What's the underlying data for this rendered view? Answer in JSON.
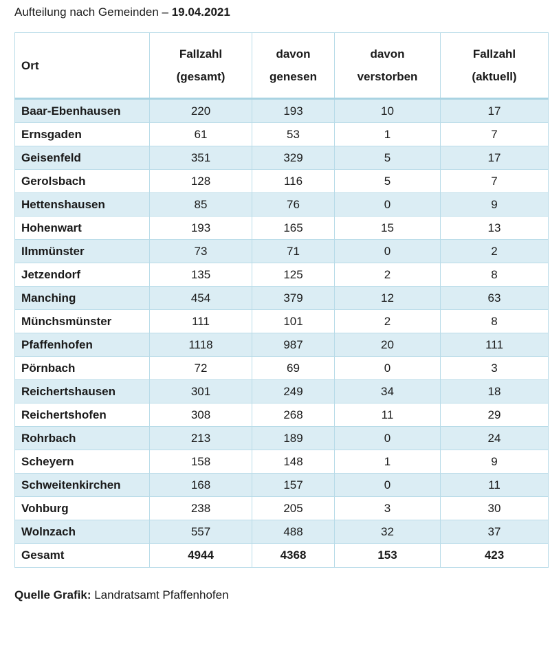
{
  "title": {
    "text": "Aufteilung nach Gemeinden – ",
    "date": "19.04.2021"
  },
  "table": {
    "headers": [
      {
        "line1": "Ort",
        "line2": ""
      },
      {
        "line1": "Fallzahl",
        "line2": "(gesamt)"
      },
      {
        "line1": "davon",
        "line2": "genesen"
      },
      {
        "line1": "davon",
        "line2": "verstorben"
      },
      {
        "line1": "Fallzahl",
        "line2": "(aktuell)"
      }
    ],
    "rows": [
      [
        "Baar-Ebenhausen",
        "220",
        "193",
        "10",
        "17"
      ],
      [
        "Ernsgaden",
        "61",
        "53",
        "1",
        "7"
      ],
      [
        "Geisenfeld",
        "351",
        "329",
        "5",
        "17"
      ],
      [
        "Gerolsbach",
        "128",
        "116",
        "5",
        "7"
      ],
      [
        "Hettenshausen",
        "85",
        "76",
        "0",
        "9"
      ],
      [
        "Hohenwart",
        "193",
        "165",
        "15",
        "13"
      ],
      [
        "Ilmmünster",
        "73",
        "71",
        "0",
        "2"
      ],
      [
        "Jetzendorf",
        "135",
        "125",
        "2",
        "8"
      ],
      [
        "Manching",
        "454",
        "379",
        "12",
        "63"
      ],
      [
        "Münchsmünster",
        "111",
        "101",
        "2",
        "8"
      ],
      [
        "Pfaffenhofen",
        "1118",
        "987",
        "20",
        "111"
      ],
      [
        "Pörnbach",
        "72",
        "69",
        "0",
        "3"
      ],
      [
        "Reichertshausen",
        "301",
        "249",
        "34",
        "18"
      ],
      [
        "Reichertshofen",
        "308",
        "268",
        "11",
        "29"
      ],
      [
        "Rohrbach",
        "213",
        "189",
        "0",
        "24"
      ],
      [
        "Scheyern",
        "158",
        "148",
        "1",
        "9"
      ],
      [
        "Schweitenkirchen",
        "168",
        "157",
        "0",
        "11"
      ],
      [
        "Vohburg",
        "238",
        "205",
        "3",
        "30"
      ],
      [
        "Wolnzach",
        "557",
        "488",
        "32",
        "37"
      ]
    ],
    "total": [
      "Gesamt",
      "4944",
      "4368",
      "153",
      "423"
    ]
  },
  "source": {
    "label": "Quelle Grafik:",
    "value": " Landratsamt Pfaffenhofen"
  },
  "colors": {
    "row_shade": "#dbedf4",
    "border": "#b8dbe8"
  }
}
